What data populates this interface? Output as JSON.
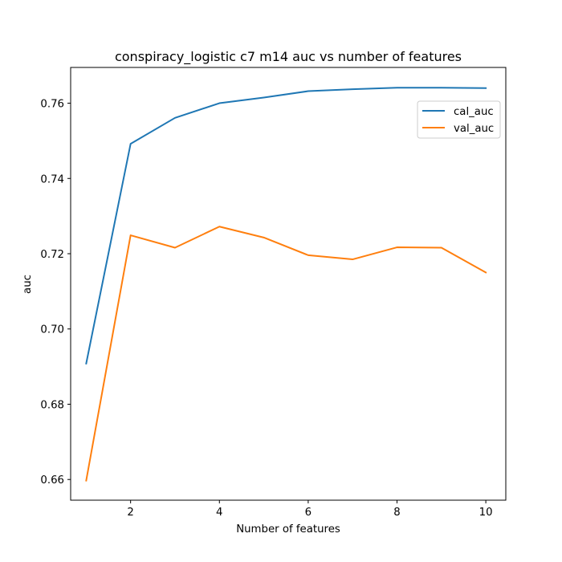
{
  "chart_data": {
    "type": "line",
    "title": "conspiracy_logistic c7 m14 auc vs number of features",
    "xlabel": "Number of features",
    "ylabel": "auc",
    "x": [
      1,
      2,
      3,
      4,
      5,
      6,
      7,
      8,
      9,
      10
    ],
    "xlim": [
      0.65,
      10.45
    ],
    "ylim": [
      0.6545,
      0.7695
    ],
    "xticks": [
      2,
      4,
      6,
      8,
      10
    ],
    "yticks": [
      0.66,
      0.68,
      0.7,
      0.72,
      0.74,
      0.76
    ],
    "ytick_labels": [
      "0.66",
      "0.68",
      "0.70",
      "0.72",
      "0.74",
      "0.76"
    ],
    "grid": false,
    "legend_position": "upper right",
    "series": [
      {
        "name": "cal_auc",
        "color": "#1f77b4",
        "values": [
          0.6908,
          0.7492,
          0.7561,
          0.76,
          0.7615,
          0.7632,
          0.7637,
          0.7641,
          0.7641,
          0.764
        ]
      },
      {
        "name": "val_auc",
        "color": "#ff7f0e",
        "values": [
          0.6597,
          0.7249,
          0.7216,
          0.7272,
          0.7243,
          0.7196,
          0.7185,
          0.7217,
          0.7216,
          0.715
        ]
      }
    ]
  }
}
